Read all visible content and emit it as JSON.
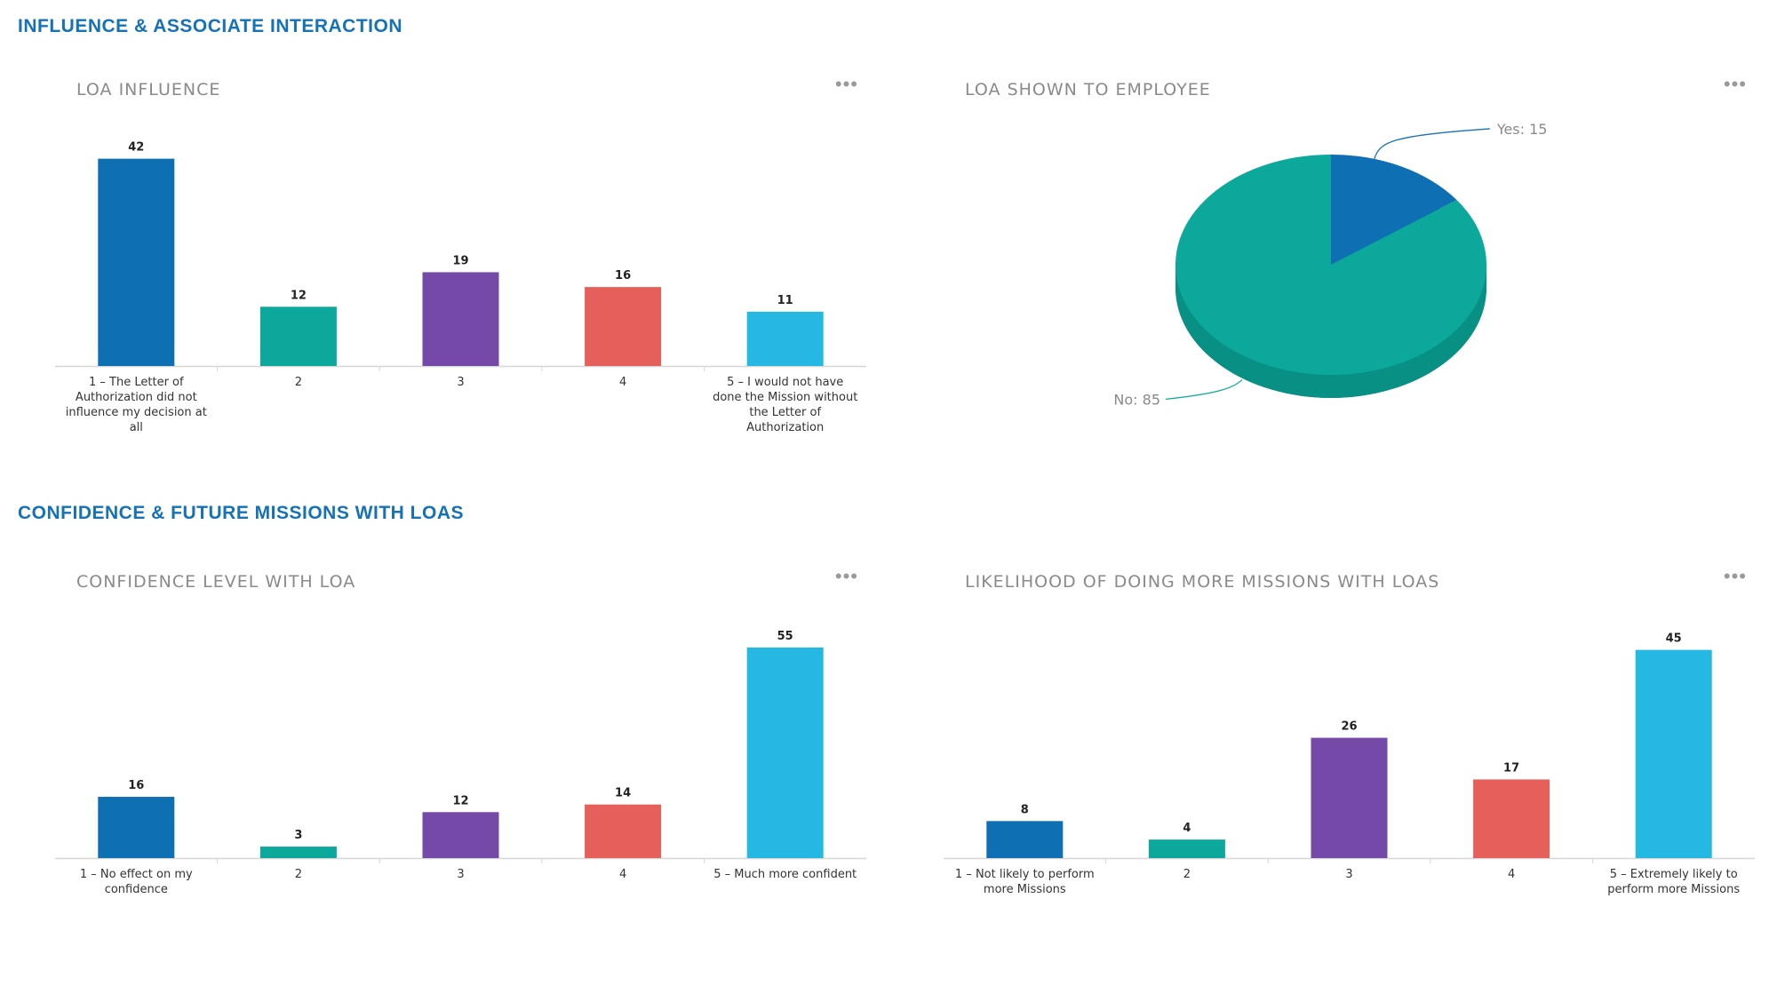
{
  "sections": [
    {
      "title": "INFLUENCE & ASSOCIATE INTERACTION"
    },
    {
      "title": "CONFIDENCE & FUTURE MISSIONS WITH LOAS"
    }
  ],
  "menu_icon": "more-horizontal-icon",
  "menu_glyph": "•••",
  "colors": [
    "#0f6fb3",
    "#0ca89b",
    "#7449a8",
    "#e5605a",
    "#24b8e3"
  ],
  "chart_data": [
    {
      "title": "LOA INFLUENCE",
      "type": "bar",
      "categories": [
        [
          "1 – The Letter of",
          "Authorization did not",
          "influence my decision at",
          "all"
        ],
        [
          "2"
        ],
        [
          "3"
        ],
        [
          "4"
        ],
        [
          "5 – I would not have",
          "done the Mission without",
          "the Letter of",
          "Authorization"
        ]
      ],
      "values": [
        42,
        12,
        19,
        16,
        11
      ],
      "ylim": [
        0,
        45
      ]
    },
    {
      "title": "LOA SHOWN TO EMPLOYEE",
      "type": "pie",
      "slices": [
        {
          "label": "Yes",
          "value": 15,
          "color": "#0f6fb3",
          "text": "Yes: 15"
        },
        {
          "label": "No",
          "value": 85,
          "color": "#0ca89b",
          "text": "No: 85"
        }
      ]
    },
    {
      "title": "CONFIDENCE LEVEL WITH LOA",
      "type": "bar",
      "categories": [
        [
          "1 – No effect on my",
          "confidence"
        ],
        [
          "2"
        ],
        [
          "3"
        ],
        [
          "4"
        ],
        [
          "5 – Much more confident"
        ]
      ],
      "values": [
        16,
        3,
        12,
        14,
        55
      ],
      "ylim": [
        0,
        58
      ]
    },
    {
      "title": "LIKELIHOOD OF DOING MORE MISSIONS WITH LOAS",
      "type": "bar",
      "categories": [
        [
          "1 – Not likely to perform",
          "more Missions"
        ],
        [
          "2"
        ],
        [
          "3"
        ],
        [
          "4"
        ],
        [
          "5 – Extremely likely to",
          "perform more Missions"
        ]
      ],
      "values": [
        8,
        4,
        26,
        17,
        45
      ],
      "ylim": [
        0,
        48
      ]
    }
  ]
}
